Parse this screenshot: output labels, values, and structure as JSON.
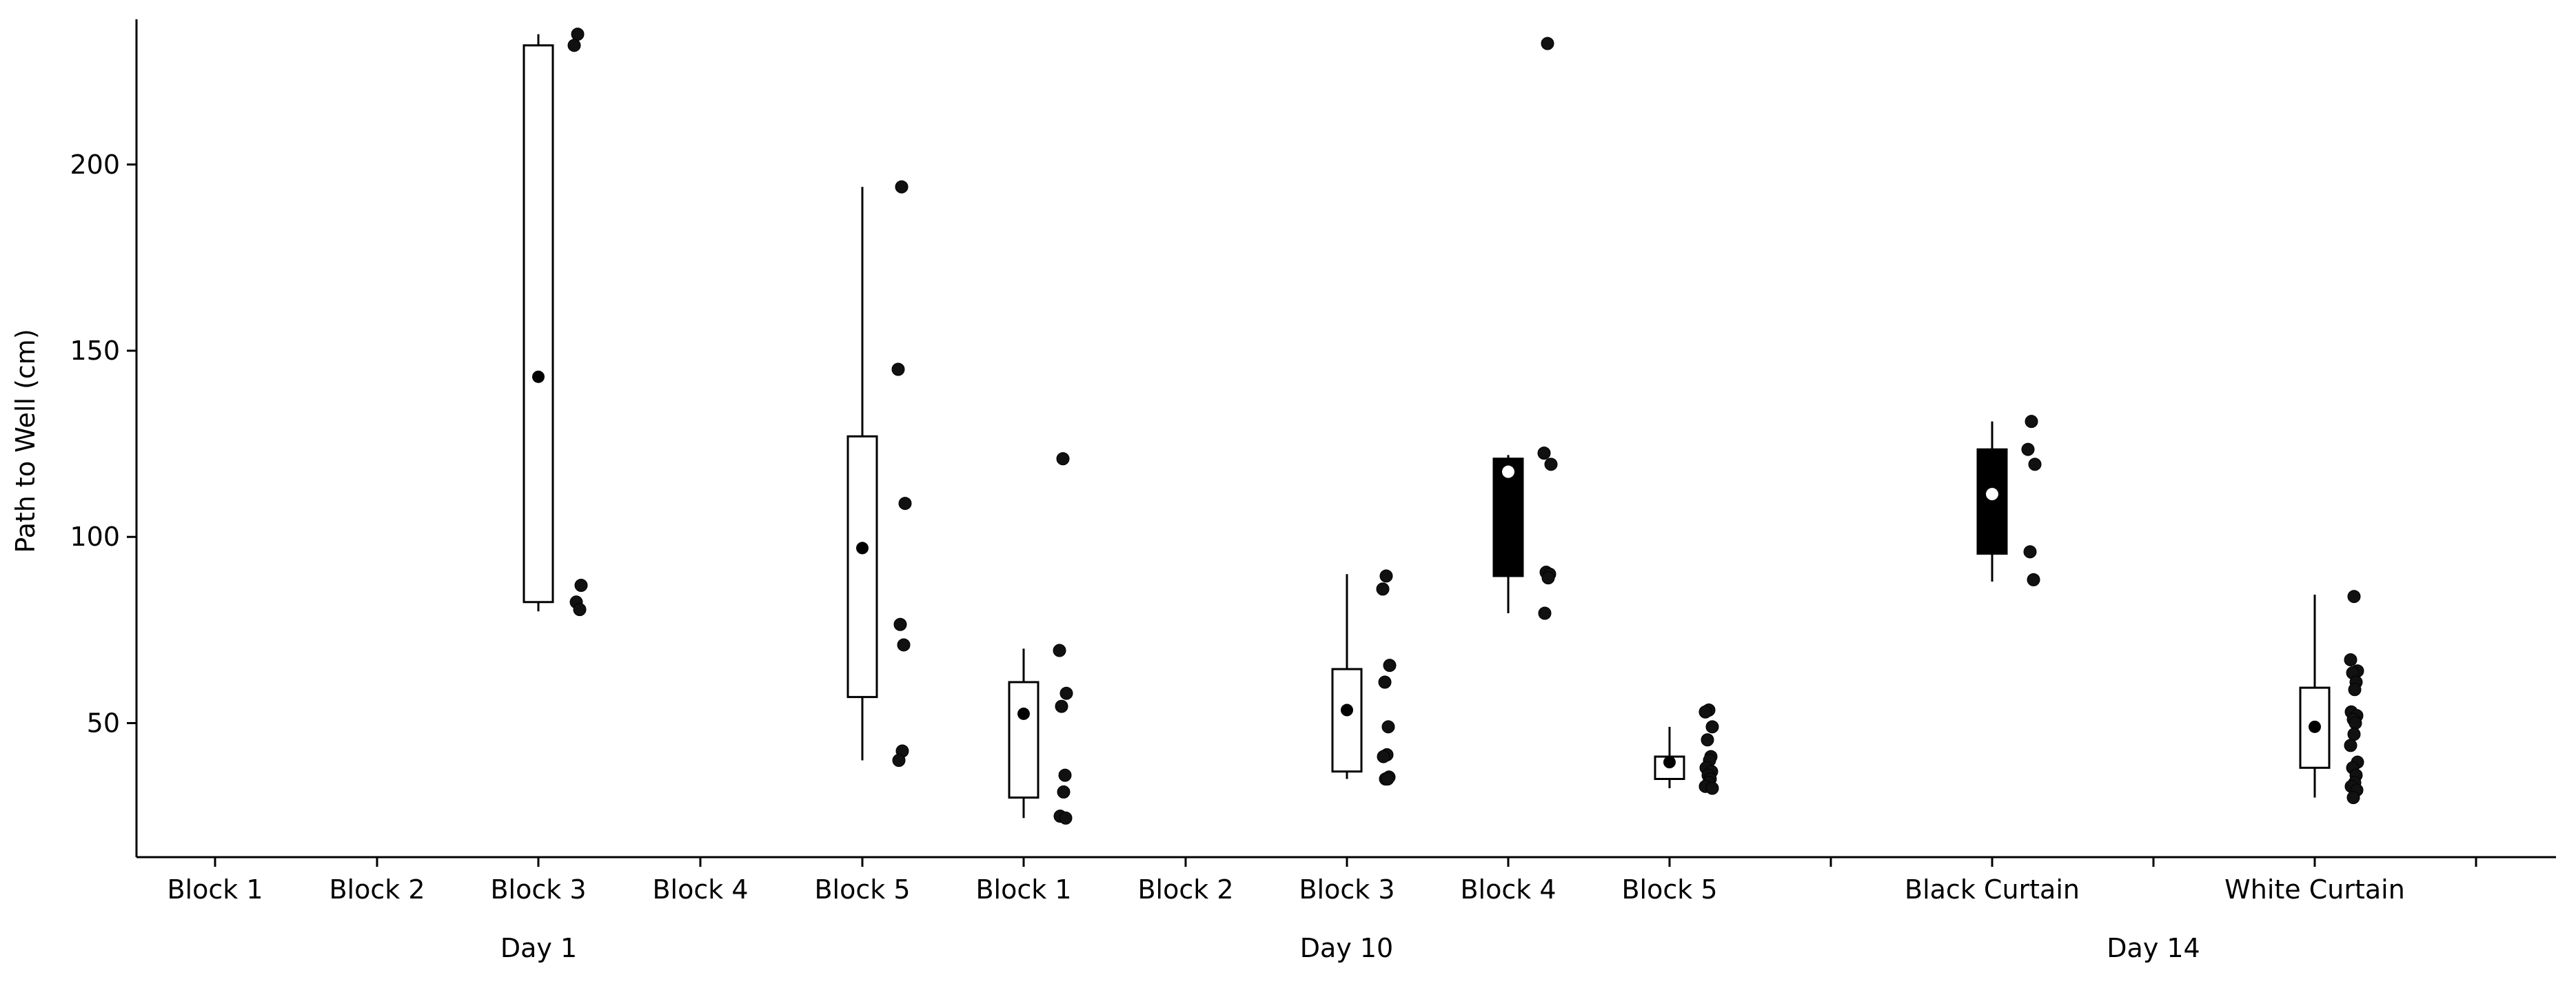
{
  "chart_data": {
    "type": "box",
    "ylabel": "Path to Well (cm)",
    "ylim": [
      14,
      239
    ],
    "yticks": [
      50,
      100,
      150,
      200
    ],
    "categories": [
      {
        "label": "Block 1",
        "fill": "none"
      },
      {
        "label": "Block 2",
        "fill": "none"
      },
      {
        "label": "Block 3",
        "fill": "white",
        "mean": 143,
        "q1": 82.5,
        "q3": 232,
        "whisker_low": 80,
        "whisker_high": 235,
        "points": [
          235,
          232,
          87,
          82.5,
          80.5
        ]
      },
      {
        "label": "Block 4",
        "fill": "none"
      },
      {
        "label": "Block 5",
        "fill": "white",
        "mean": 97,
        "q1": 57,
        "q3": 127,
        "whisker_low": 40,
        "whisker_high": 194,
        "points": [
          194,
          145,
          109,
          76.5,
          71,
          42.5,
          40
        ]
      },
      {
        "label": "Block 1",
        "fill": "white",
        "mean": 52.5,
        "q1": 30,
        "q3": 61,
        "whisker_low": 24.5,
        "whisker_high": 70,
        "points": [
          121,
          69.5,
          58,
          54.5,
          36,
          31.5,
          25,
          24.5
        ]
      },
      {
        "label": "Block 2",
        "fill": "none"
      },
      {
        "label": "Block 3",
        "fill": "white",
        "mean": 53.5,
        "q1": 37,
        "q3": 64.5,
        "whisker_low": 35,
        "whisker_high": 90,
        "points": [
          89.5,
          86,
          65.5,
          61,
          49,
          41.5,
          41,
          35.5,
          35,
          35
        ]
      },
      {
        "label": "Block 4",
        "fill": "black",
        "mean": 117.5,
        "q1": 89.5,
        "q3": 121,
        "whisker_low": 79.5,
        "whisker_high": 122,
        "points": [
          232.5,
          122.5,
          119.5,
          90.5,
          90,
          89,
          79.5
        ]
      },
      {
        "label": "Block 5",
        "fill": "white",
        "mean": 39.5,
        "q1": 35,
        "q3": 41,
        "whisker_low": 32.5,
        "whisker_high": 49,
        "points": [
          53.5,
          53,
          49,
          45.5,
          41,
          40,
          38,
          37,
          36,
          35,
          34,
          33,
          32.5
        ]
      },
      {
        "label": "Black Curtain",
        "fill": "black",
        "mean": 111.5,
        "q1": 95.5,
        "q3": 123.5,
        "whisker_low": 88,
        "whisker_high": 131,
        "points": [
          131,
          123.5,
          119.5,
          96,
          88.5
        ]
      },
      {
        "label": "White Curtain",
        "fill": "white",
        "mean": 49,
        "q1": 38,
        "q3": 59.5,
        "whisker_low": 30,
        "whisker_high": 84.5,
        "points": [
          84,
          67,
          64,
          63.5,
          61,
          59,
          53,
          52,
          51,
          50,
          47,
          44,
          39.5,
          38,
          36,
          34,
          33,
          32,
          30
        ]
      }
    ],
    "groups": [
      {
        "label": "Day 1",
        "span": [
          0,
          4
        ]
      },
      {
        "label": "Day 10",
        "span": [
          5,
          9
        ]
      },
      {
        "label": "Day 14",
        "span": [
          10,
          11
        ]
      }
    ],
    "grid": false
  }
}
